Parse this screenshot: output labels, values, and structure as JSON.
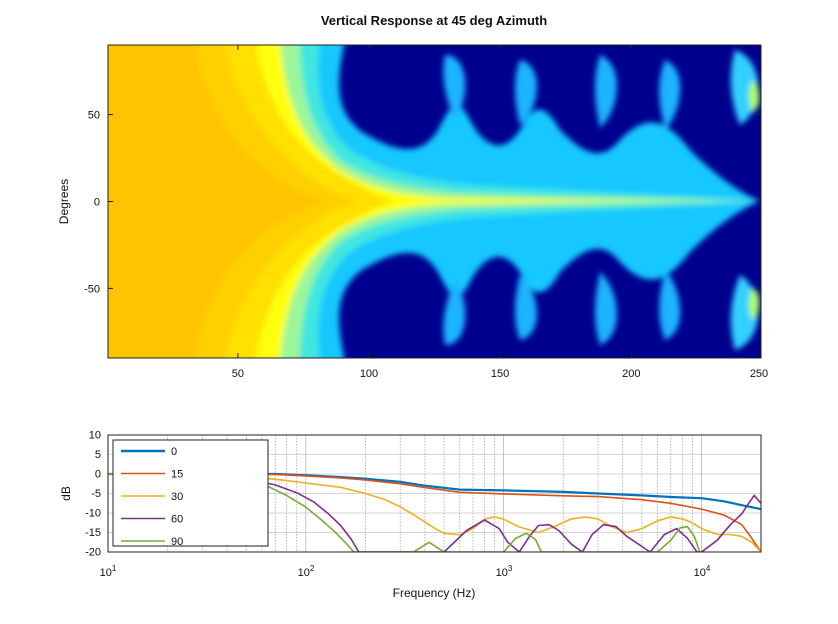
{
  "chart_data": [
    {
      "type": "heatmap",
      "title": "Vertical Response at 45 deg Azimuth",
      "xlabel": "",
      "ylabel": "Degrees",
      "xlim": [
        1,
        250
      ],
      "ylim": [
        -90,
        90
      ],
      "x_ticks": [
        "50",
        "100",
        "150",
        "200",
        "250"
      ],
      "y_ticks": [
        "50",
        "0",
        "-50"
      ],
      "colormap": [
        "#00008f",
        "#0050ff",
        "#00c8ff",
        "#80ffb0",
        "#ffff00",
        "#ffd200",
        "#ffc400"
      ],
      "grid": false
    },
    {
      "type": "line",
      "title": "",
      "xlabel": "Frequency (Hz)",
      "ylabel": "dB",
      "xscale": "log",
      "xlim": [
        10,
        20000
      ],
      "ylim": [
        -20,
        10
      ],
      "y_ticks": [
        "10",
        "5",
        "0",
        "-5",
        "-10",
        "-15",
        "-20"
      ],
      "x_ticks": [
        {
          "base": "10",
          "exp": "1"
        },
        {
          "base": "10",
          "exp": "2"
        },
        {
          "base": "10",
          "exp": "3"
        },
        {
          "base": "10",
          "exp": "4"
        }
      ],
      "grid": true,
      "legend_position": "top-left",
      "series": [
        {
          "name": "0",
          "color": "#0072bd",
          "x": [
            10,
            50,
            70,
            100,
            150,
            200,
            300,
            400,
            600,
            1000,
            2000,
            3000,
            5000,
            7000,
            10000,
            13000,
            16000,
            20000
          ],
          "y": [
            0,
            0,
            0,
            -0.3,
            -0.8,
            -1.2,
            -2.0,
            -3.0,
            -4.0,
            -4.2,
            -4.6,
            -5.0,
            -5.5,
            -5.9,
            -6.2,
            -7.0,
            -8.0,
            -9.0
          ]
        },
        {
          "name": "15",
          "color": "#d95319",
          "x": [
            10,
            50,
            70,
            100,
            150,
            200,
            300,
            400,
            600,
            1000,
            2000,
            3000,
            5000,
            7000,
            10000,
            13000,
            16000,
            18000,
            20000
          ],
          "y": [
            0,
            0,
            -0.1,
            -0.5,
            -1.0,
            -1.5,
            -2.5,
            -3.5,
            -4.7,
            -5.1,
            -5.6,
            -5.8,
            -6.6,
            -7.5,
            -9.0,
            -10.5,
            -13.0,
            -16.5,
            -20.0
          ]
        },
        {
          "name": "30",
          "color": "#edb120",
          "x": [
            10,
            40,
            60,
            80,
            100,
            150,
            200,
            250,
            300,
            350,
            400,
            450,
            500,
            600,
            700,
            800,
            900,
            1000,
            1200,
            1500,
            1800,
            2200,
            2600,
            3000,
            3500,
            4200,
            5000,
            6000,
            7000,
            8000,
            9000,
            10000,
            12000,
            14000,
            16000,
            18000,
            20000
          ],
          "y": [
            0,
            -0.3,
            -1.0,
            -1.7,
            -2.3,
            -3.4,
            -5.0,
            -6.5,
            -8.4,
            -10.4,
            -12.3,
            -14.0,
            -15.2,
            -15.6,
            -14.0,
            -11.6,
            -11.0,
            -11.6,
            -13.6,
            -15.0,
            -13.5,
            -11.5,
            -11.0,
            -11.5,
            -13.5,
            -15.0,
            -14.0,
            -12.0,
            -11.0,
            -11.5,
            -12.5,
            -14.0,
            -15.5,
            -15.5,
            -16.0,
            -17.5,
            -20.0
          ]
        },
        {
          "name": "60",
          "color": "#7e2f8e",
          "x": [
            10,
            50,
            70,
            90,
            110,
            130,
            150,
            170,
            185,
            500,
            650,
            800,
            950,
            1050,
            1200,
            1350,
            1500,
            1700,
            1900,
            2200,
            2500,
            2800,
            3200,
            3700,
            4200,
            5500,
            6500,
            7500,
            8500,
            9500,
            10000,
            12000,
            14000,
            16000,
            17500,
            18500,
            20000
          ],
          "y": [
            0,
            -1.3,
            -2.8,
            -4.8,
            -7.2,
            -10.2,
            -13.2,
            -16.8,
            -20.0,
            -20.0,
            -14.5,
            -11.8,
            -14.0,
            -17.5,
            -20.0,
            -16.0,
            -13.2,
            -13.0,
            -14.5,
            -18.0,
            -20.0,
            -15.5,
            -13.0,
            -13.5,
            -16.0,
            -20.0,
            -15.5,
            -14.0,
            -16.5,
            -20.0,
            -20.0,
            -17.0,
            -13.0,
            -10.2,
            -7.2,
            -5.5,
            -7.5
          ]
        },
        {
          "name": "90",
          "color": "#77ac30",
          "x": [
            10,
            50,
            65,
            80,
            100,
            120,
            140,
            160,
            175,
            350,
            420,
            500,
            1000,
            1150,
            1300,
            1450,
            1550,
            6000,
            7000,
            7800,
            8500,
            9200,
            9800
          ],
          "y": [
            0,
            -1.6,
            -3.3,
            -5.5,
            -8.5,
            -11.8,
            -14.8,
            -17.8,
            -20.0,
            -20.0,
            -17.5,
            -20.0,
            -20.0,
            -16.5,
            -15.2,
            -16.8,
            -20.0,
            -20.0,
            -17.0,
            -13.8,
            -13.5,
            -16.0,
            -20.0
          ]
        }
      ]
    }
  ]
}
